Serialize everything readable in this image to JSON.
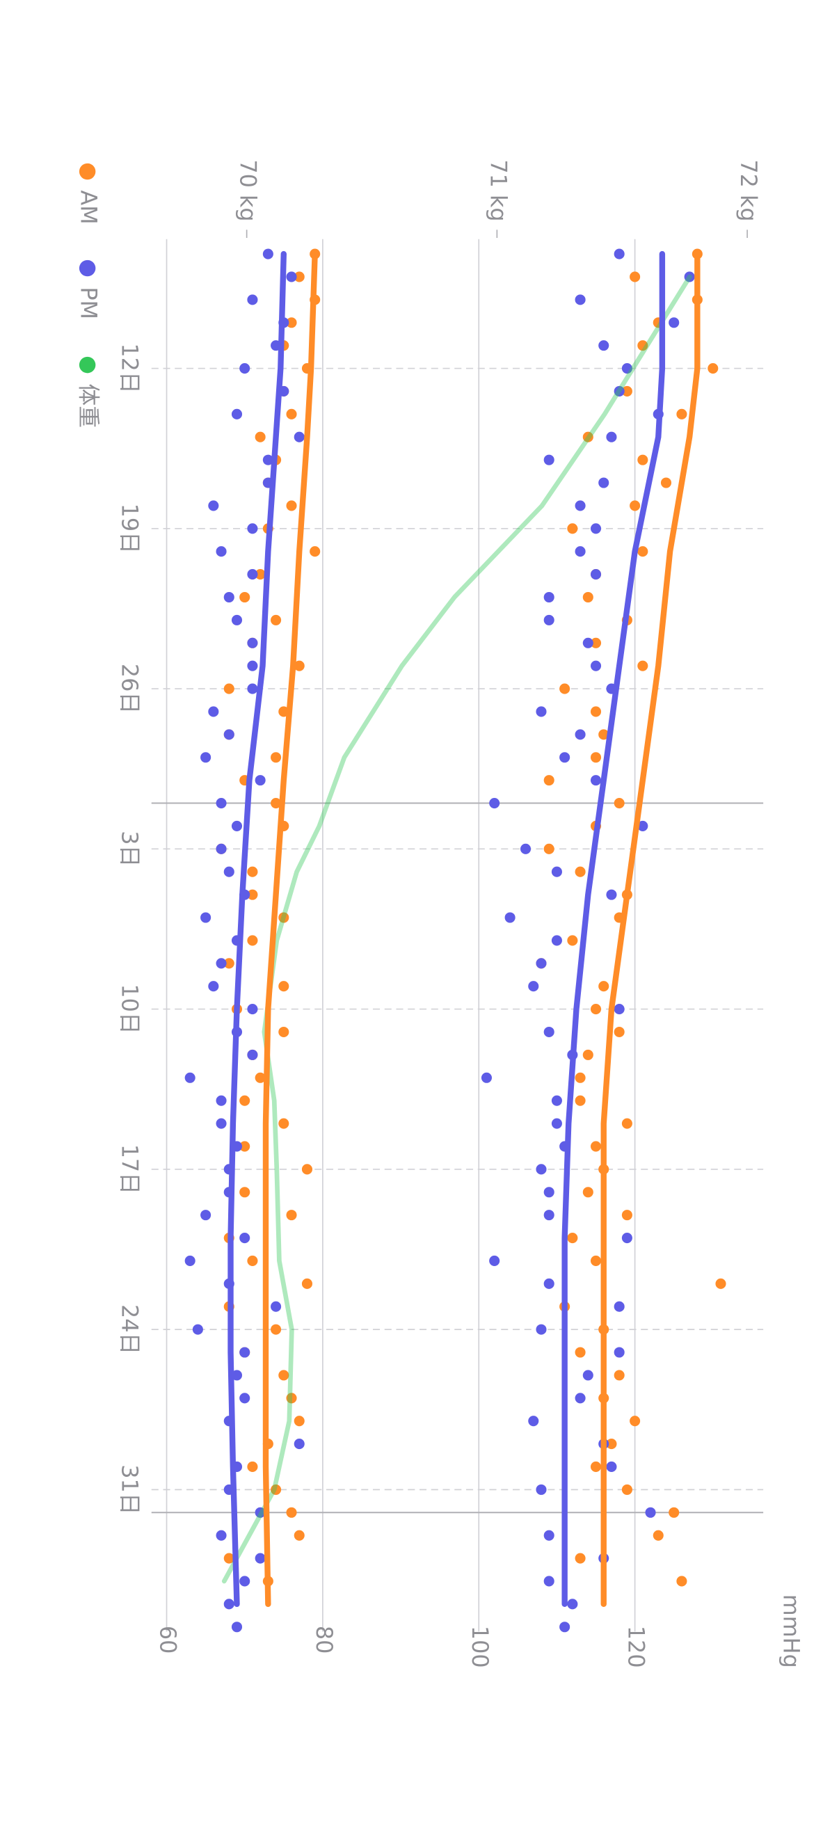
{
  "chart_data": {
    "type": "scatter",
    "y_label": "mmHg",
    "legend": "bottom-left",
    "grid": true,
    "xlim": [
      6.35,
      67.2
    ],
    "xticks": [
      {
        "value": 12,
        "label": "12日"
      },
      {
        "value": 19,
        "label": "19日"
      },
      {
        "value": 26,
        "label": "26日"
      },
      {
        "value": 33,
        "label": "3日"
      },
      {
        "value": 40,
        "label": "10日"
      },
      {
        "value": 47,
        "label": "17日"
      },
      {
        "value": 54,
        "label": "24日"
      },
      {
        "value": 61,
        "label": "31日"
      }
    ],
    "month_boundaries": [
      31,
      62
    ],
    "ylim": [
      60,
      136
    ],
    "yticks": [
      60,
      80,
      100,
      120
    ],
    "y2lim": [
      69.68,
      72.05
    ],
    "y2ticks": [
      {
        "value": 70,
        "label": "70 kg"
      },
      {
        "value": 71,
        "label": "71 kg"
      },
      {
        "value": 72,
        "label": "72 kg"
      }
    ],
    "x": [
      7,
      8,
      9,
      10,
      11,
      12,
      13,
      14,
      15,
      16,
      17,
      18,
      19,
      20,
      21,
      22,
      23,
      24,
      25,
      26,
      27,
      28,
      29,
      30,
      31,
      32,
      33,
      34,
      35,
      36,
      37,
      38,
      39,
      40,
      41,
      42,
      43,
      44,
      45,
      46,
      47,
      48,
      49,
      50,
      51,
      52,
      53,
      54,
      55,
      56,
      57,
      58,
      59,
      60,
      61,
      62,
      63,
      64,
      65,
      66,
      67
    ],
    "trend_x": [
      7,
      12,
      15,
      20,
      25,
      30,
      35,
      40,
      45,
      50,
      55,
      60,
      66
    ],
    "series": [
      {
        "name": "AM",
        "color": "#ff8c28",
        "systolic": [
          128,
          120,
          128,
          123,
          121,
          130,
          119,
          126,
          114,
          121,
          124,
          120,
          112,
          121,
          115,
          114,
          119,
          115,
          121,
          111,
          115,
          116,
          115,
          109,
          118,
          115,
          109,
          113,
          119,
          118,
          112,
          108,
          116,
          115,
          118,
          114,
          113,
          113,
          119,
          115,
          116,
          114,
          119,
          112,
          115,
          131,
          111,
          116,
          113,
          118,
          116,
          120,
          117,
          115,
          119,
          125,
          123,
          113,
          126,
          null,
          null
        ],
        "diastolic": [
          79,
          77,
          79,
          76,
          75,
          78,
          75,
          76,
          72,
          74,
          73,
          76,
          73,
          79,
          72,
          70,
          74,
          71,
          77,
          68,
          75,
          68,
          74,
          70,
          74,
          75,
          67,
          71,
          71,
          75,
          71,
          68,
          75,
          69,
          75,
          71,
          72,
          70,
          75,
          70,
          78,
          70,
          76,
          68,
          71,
          78,
          68,
          74,
          70,
          75,
          76,
          77,
          73,
          71,
          74,
          76,
          77,
          68,
          73,
          null,
          null
        ],
        "systolic_trend": [
          128,
          128,
          127,
          124.5,
          123,
          121,
          119,
          117,
          116,
          116,
          116,
          116,
          116
        ],
        "diastolic_trend": [
          79,
          78.5,
          78,
          77,
          76.2,
          75,
          74,
          73,
          72.7,
          72.7,
          72.7,
          72.7,
          73
        ]
      },
      {
        "name": "PM",
        "color": "#5e5ce6",
        "systolic": [
          118,
          127,
          113,
          125,
          116,
          119,
          118,
          123,
          117,
          109,
          116,
          113,
          115,
          113,
          115,
          109,
          109,
          114,
          115,
          117,
          108,
          113,
          111,
          115,
          102,
          121,
          106,
          110,
          117,
          104,
          110,
          108,
          107,
          118,
          109,
          112,
          101,
          110,
          110,
          111,
          108,
          109,
          109,
          119,
          102,
          109,
          118,
          108,
          118,
          114,
          113,
          107,
          116,
          117,
          108,
          122,
          109,
          116,
          109,
          112,
          111
        ],
        "diastolic": [
          73,
          76,
          71,
          75,
          74,
          70,
          75,
          69,
          77,
          73,
          73,
          66,
          71,
          67,
          71,
          68,
          69,
          71,
          71,
          71,
          66,
          68,
          65,
          72,
          67,
          69,
          67,
          68,
          70,
          65,
          69,
          67,
          66,
          71,
          69,
          71,
          63,
          67,
          67,
          69,
          68,
          68,
          65,
          70,
          63,
          68,
          74,
          64,
          70,
          69,
          70,
          68,
          77,
          69,
          68,
          72,
          67,
          72,
          70,
          68,
          69
        ],
        "systolic_trend": [
          123.5,
          123.5,
          123,
          120,
          118,
          116,
          114,
          112.5,
          111.5,
          111,
          111,
          111,
          111
        ],
        "diastolic_trend": [
          75,
          74.6,
          74,
          73,
          72.3,
          70.6,
          69.7,
          69,
          68.5,
          68.2,
          68.2,
          68.5,
          69
        ]
      },
      {
        "name": "体重",
        "color": "#34c759",
        "axis": "y2",
        "x": [
          8,
          11,
          14,
          18,
          22,
          25,
          29,
          32,
          34,
          37,
          41,
          44,
          47,
          51,
          54,
          58,
          61,
          63,
          65
        ],
        "values": [
          71.77,
          71.6,
          71.43,
          71.18,
          70.83,
          70.62,
          70.39,
          70.29,
          70.2,
          70.12,
          70.07,
          70.11,
          70.12,
          70.13,
          70.18,
          70.17,
          70.11,
          70.01,
          69.91
        ]
      }
    ]
  }
}
